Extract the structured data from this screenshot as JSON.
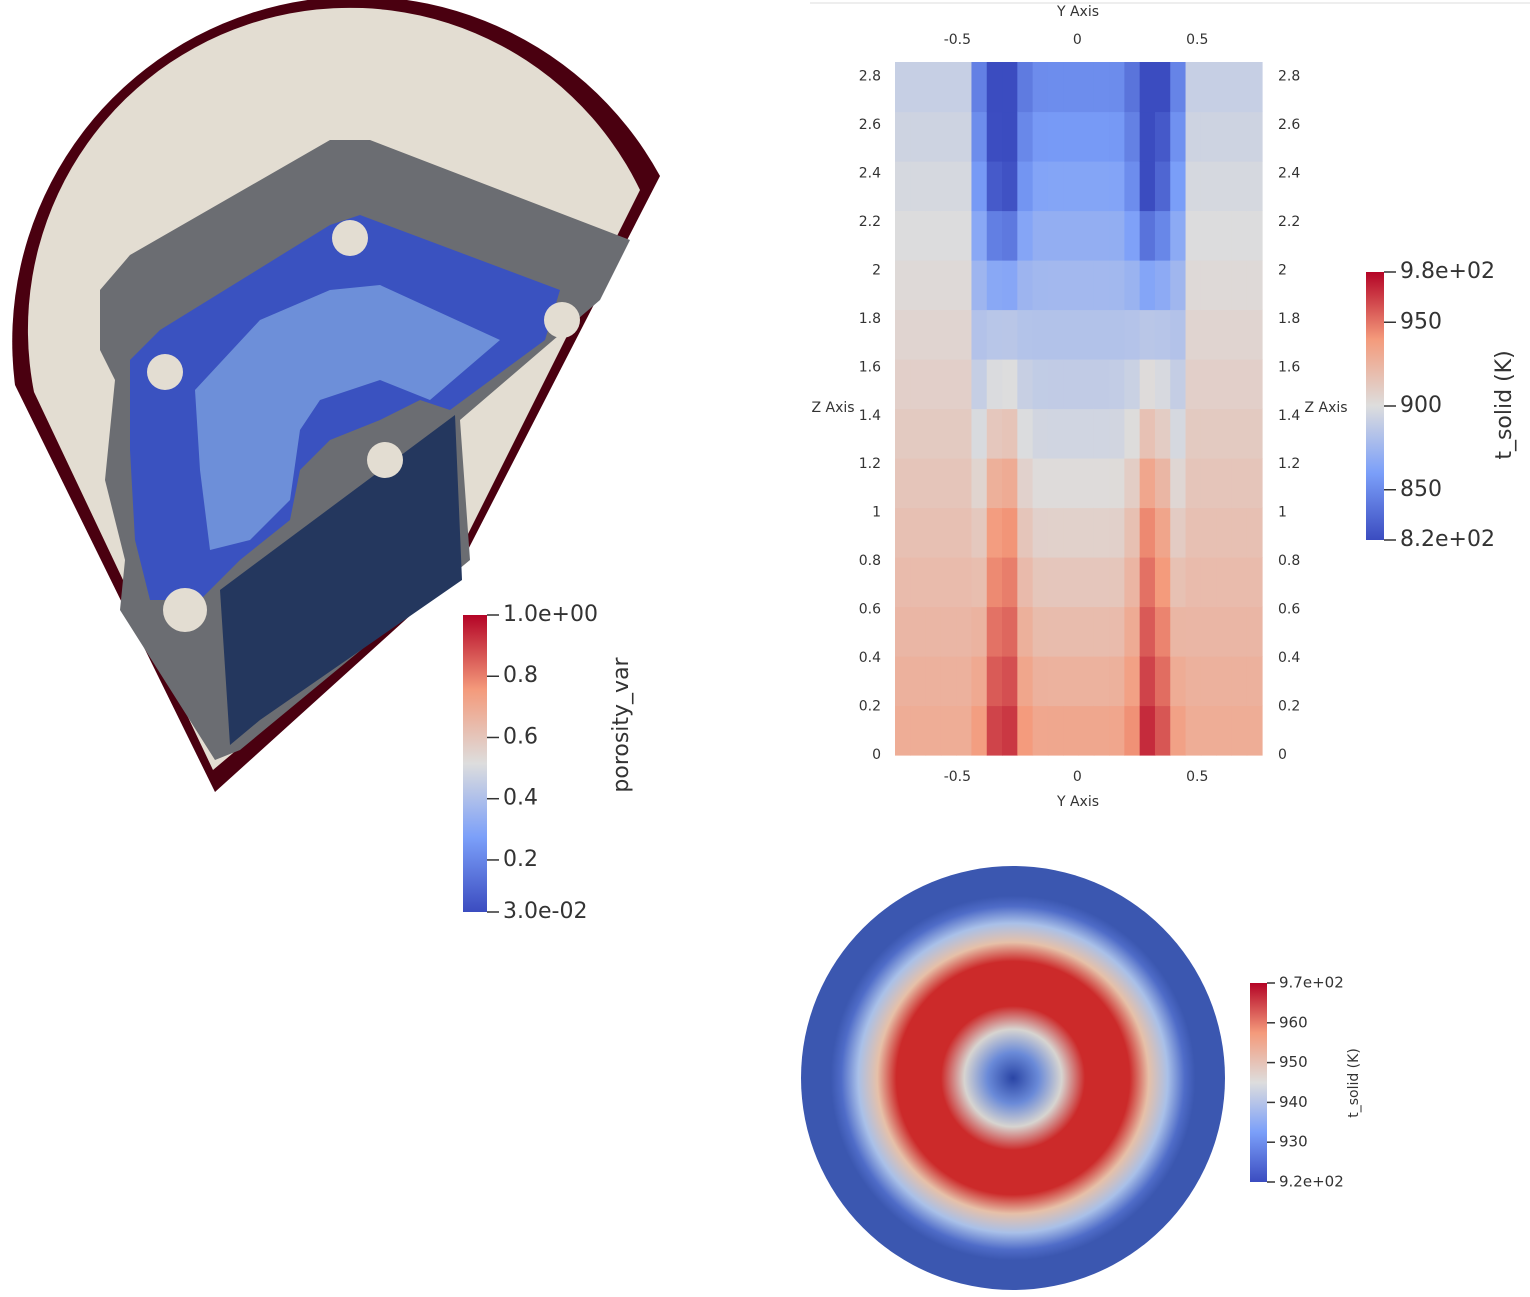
{
  "porosity_colorbar": {
    "title": "porosity_var",
    "ticks": [
      {
        "value": 1.0,
        "label": "1.0e+00"
      },
      0.8,
      0.6,
      0.4,
      0.2,
      {
        "value": 0.03,
        "label": "3.0e-02"
      }
    ]
  },
  "slice_view": {
    "x_axis_title": "Y Axis",
    "y_axis_title": "Z Axis",
    "xlim": [
      -0.76,
      0.77
    ],
    "ylim": [
      0,
      2.86
    ],
    "xticks": [
      -0.5,
      0,
      0.5
    ],
    "yticks": [
      0,
      0.2,
      0.4,
      0.6,
      0.8,
      1,
      1.2,
      1.4,
      1.6,
      1.8,
      2,
      2.2,
      2.4,
      2.6,
      2.8
    ]
  },
  "slice_colorbar": {
    "title": "t_solid (K)",
    "ticks": [
      {
        "value": 980,
        "label": "9.8e+02"
      },
      950,
      900,
      850,
      {
        "value": 820,
        "label": "8.2e+02"
      }
    ]
  },
  "disk_colorbar": {
    "title": "t_solid (K)",
    "ticks": [
      {
        "value": 970,
        "label": "9.7e+02"
      },
      960,
      950,
      940,
      930,
      {
        "value": 920,
        "label": "9.2e+02"
      }
    ]
  }
}
